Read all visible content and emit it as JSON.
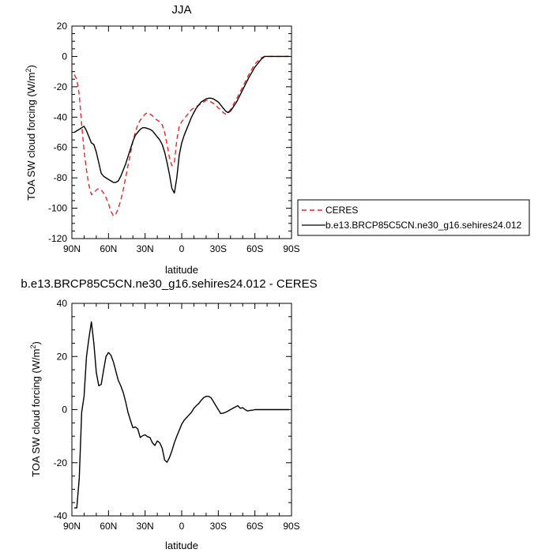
{
  "chart_data": [
    {
      "type": "line",
      "title": "JJA",
      "xlabel": "latitude",
      "ylabel": "TOA SW cloud forcing (W/m²)",
      "ylabel_base": "TOA SW cloud forcing (W/m",
      "ylabel_sup": "2",
      "ylabel_end": ")",
      "xlim": [
        90,
        -90
      ],
      "ylim": [
        -120,
        20
      ],
      "x_ticks": [
        90,
        60,
        30,
        0,
        -30,
        -60,
        -90
      ],
      "x_tick_labels": [
        "90N",
        "60N",
        "30N",
        "0",
        "30S",
        "60S",
        "90S"
      ],
      "y_ticks": [
        -120,
        -100,
        -80,
        -60,
        -40,
        -20,
        0,
        20
      ],
      "y_tick_labels": [
        "-120",
        "-100",
        "-80",
        "-60",
        "-40",
        "-20",
        "0",
        "20"
      ],
      "legend_position": "right",
      "series": [
        {
          "name": "CERES",
          "color": "#e8282c",
          "dash": "dashed",
          "x": [
            88,
            86,
            84,
            82,
            80,
            78,
            76,
            74,
            72,
            70,
            68,
            66,
            64,
            62,
            60,
            58,
            56,
            54,
            52,
            50,
            48,
            46,
            44,
            42,
            40,
            38,
            36,
            34,
            32,
            30,
            28,
            26,
            24,
            22,
            20,
            18,
            16,
            14,
            12,
            10,
            8,
            6,
            4,
            2,
            0,
            -2,
            -4,
            -6,
            -8,
            -10,
            -12,
            -14,
            -16,
            -18,
            -20,
            -22,
            -24,
            -26,
            -28,
            -30,
            -32,
            -34,
            -36,
            -38,
            -40,
            -45,
            -50,
            -55,
            -60,
            -65,
            -68,
            -70,
            -72,
            -75,
            -80,
            -85,
            -88
          ],
          "y": [
            -12,
            -15,
            -25,
            -45,
            -62,
            -75,
            -85,
            -91,
            -90,
            -88,
            -87,
            -88,
            -90,
            -93,
            -97,
            -102,
            -105,
            -104,
            -100,
            -95,
            -88,
            -80,
            -72,
            -64,
            -56,
            -50,
            -45,
            -42,
            -40,
            -38,
            -37,
            -38,
            -39,
            -41,
            -42,
            -43,
            -45,
            -50,
            -58,
            -67,
            -72,
            -70,
            -55,
            -46,
            -43,
            -41,
            -39,
            -37,
            -35,
            -34,
            -33,
            -32,
            -31,
            -30,
            -29,
            -29,
            -30,
            -31,
            -32,
            -34,
            -35,
            -37,
            -38,
            -37,
            -35,
            -28,
            -20,
            -12,
            -5,
            -1,
            0,
            0,
            0,
            0,
            0,
            0,
            0
          ]
        },
        {
          "name": "b.e13.BRCP85C5CN.ne30_g16.sehires24.012",
          "color": "#000000",
          "dash": "solid",
          "x": [
            88,
            86,
            84,
            82,
            80,
            78,
            76,
            74,
            72,
            70,
            68,
            66,
            64,
            62,
            60,
            58,
            56,
            54,
            52,
            50,
            48,
            46,
            44,
            42,
            40,
            38,
            36,
            34,
            32,
            30,
            28,
            26,
            24,
            22,
            20,
            18,
            16,
            14,
            12,
            10,
            8,
            6,
            4,
            2,
            0,
            -2,
            -4,
            -6,
            -8,
            -10,
            -12,
            -14,
            -16,
            -18,
            -20,
            -22,
            -24,
            -26,
            -28,
            -30,
            -32,
            -34,
            -36,
            -38,
            -40,
            -45,
            -50,
            -55,
            -60,
            -65,
            -68,
            -70,
            -72,
            -75,
            -80,
            -85,
            -88
          ],
          "y": [
            -50,
            -49,
            -48,
            -47,
            -46,
            -49,
            -53,
            -57,
            -58,
            -63,
            -70,
            -77,
            -79,
            -80,
            -81,
            -82,
            -83,
            -83,
            -82,
            -79,
            -75,
            -71,
            -66,
            -61,
            -56,
            -52,
            -50,
            -48,
            -47,
            -47,
            -47.5,
            -48,
            -49,
            -51,
            -53,
            -55,
            -58,
            -63,
            -70,
            -78,
            -87,
            -90,
            -80,
            -65,
            -57,
            -52,
            -48,
            -44,
            -40,
            -37,
            -34,
            -32,
            -30,
            -29,
            -28,
            -27.5,
            -27.5,
            -28,
            -29,
            -30,
            -32,
            -34,
            -36,
            -37,
            -36,
            -30,
            -22,
            -14,
            -7,
            -2,
            0,
            0,
            0,
            0,
            0,
            0,
            0
          ]
        }
      ]
    },
    {
      "type": "line",
      "title": "b.e13.BRCP85C5CN.ne30_g16.sehires24.012 - CERES",
      "xlabel": "latitude",
      "ylabel": "TOA SW cloud forcing (W/m²)",
      "ylabel_base": "TOA SW cloud forcing (W/m",
      "ylabel_sup": "2",
      "ylabel_end": ")",
      "xlim": [
        90,
        -90
      ],
      "ylim": [
        -40,
        40
      ],
      "x_ticks": [
        90,
        60,
        30,
        0,
        -30,
        -60,
        -90
      ],
      "x_tick_labels": [
        "90N",
        "60N",
        "30N",
        "0",
        "30S",
        "60S",
        "90S"
      ],
      "y_ticks": [
        -40,
        -20,
        0,
        20,
        40
      ],
      "y_tick_labels": [
        "-40",
        "-20",
        "0",
        "20",
        "40"
      ],
      "series": [
        {
          "color": "#000000",
          "dash": "solid",
          "x": [
            88,
            86,
            84,
            82,
            80,
            78,
            76,
            74,
            72,
            70,
            68,
            66,
            64,
            62,
            60,
            58,
            56,
            54,
            52,
            50,
            48,
            46,
            44,
            42,
            40,
            38,
            36,
            34,
            32,
            30,
            28,
            26,
            24,
            22,
            20,
            18,
            16,
            14,
            12,
            10,
            8,
            6,
            4,
            2,
            0,
            -2,
            -4,
            -6,
            -8,
            -10,
            -12,
            -14,
            -16,
            -18,
            -20,
            -22,
            -24,
            -26,
            -28,
            -30,
            -32,
            -34,
            -36,
            -38,
            -40,
            -42,
            -44,
            -46,
            -48,
            -50,
            -52,
            -54,
            -56,
            -58,
            -60,
            -62,
            -64,
            -66,
            -68,
            -70,
            -75,
            -80,
            -85,
            -88
          ],
          "y": [
            -37,
            -37,
            -26,
            -1,
            5,
            20,
            27,
            33,
            25,
            14,
            9,
            9.5,
            15,
            20,
            21.5,
            20.5,
            18,
            14.5,
            11,
            9,
            6.5,
            3,
            -1,
            -4,
            -6.8,
            -6.5,
            -7.3,
            -10.5,
            -9.8,
            -9.5,
            -10.2,
            -10.5,
            -12.5,
            -13.5,
            -11.8,
            -12.5,
            -14.5,
            -19,
            -19.8,
            -18,
            -15.5,
            -12.5,
            -10,
            -7.8,
            -5.5,
            -4,
            -3,
            -2,
            -1,
            0.5,
            1.5,
            2.3,
            3.5,
            4.5,
            5,
            5,
            4.5,
            3,
            1.5,
            0,
            -1.5,
            -1.3,
            -1,
            -0.5,
            0,
            0.5,
            1,
            1.5,
            0.5,
            0.7,
            0,
            -0.5,
            -0.3,
            -0.2,
            0,
            0,
            0,
            0,
            0,
            0,
            0,
            0,
            0,
            0
          ]
        }
      ]
    }
  ]
}
